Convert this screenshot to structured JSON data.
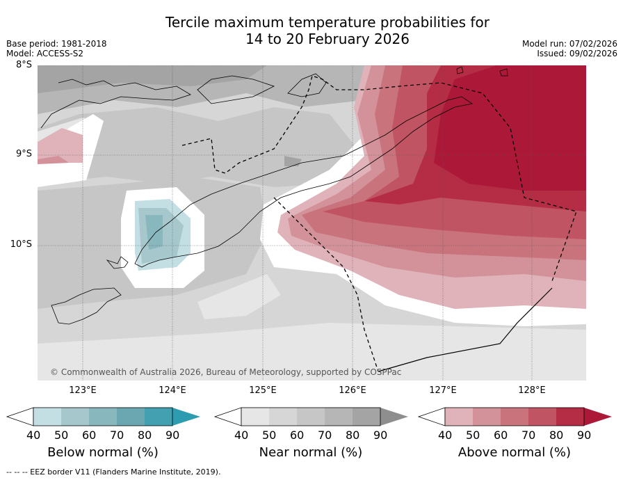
{
  "title_line1": "Tercile maximum temperature probabilities for",
  "title_line2": "14 to 20 February 2026",
  "base_period": "Base period: 1981-2018",
  "model": "Model: ACCESS-S2",
  "model_run": "Model run: 07/02/2026",
  "issued": "Issued: 09/02/2026",
  "lat_labels": [
    "8°S",
    "9°S",
    "10°S"
  ],
  "lon_labels": [
    "123°E",
    "124°E",
    "125°E",
    "126°E",
    "127°E",
    "128°E"
  ],
  "copyright": "© Commonwealth of Australia 2026, Bureau of Meteorology, supported by COSPPac",
  "colorbars": [
    {
      "label": "Below normal (%)",
      "ticks": [
        "40",
        "50",
        "60",
        "70",
        "80",
        "90"
      ],
      "colors": [
        "#c4dfe4",
        "#a6c8cd",
        "#88b7bd",
        "#6aa7b1",
        "#43a0b1",
        "#2d9bb0"
      ]
    },
    {
      "label": "Near normal (%)",
      "ticks": [
        "40",
        "50",
        "60",
        "70",
        "80",
        "90"
      ],
      "colors": [
        "#e6e6e6",
        "#d6d6d6",
        "#c6c6c6",
        "#b6b6b6",
        "#a4a4a4",
        "#8e8e8e"
      ]
    },
    {
      "label": "Above normal (%)",
      "ticks": [
        "40",
        "50",
        "60",
        "70",
        "80",
        "90"
      ],
      "colors": [
        "#dfb3b9",
        "#d3929a",
        "#c9737d",
        "#c15463",
        "#b52d45",
        "#ac1838"
      ]
    }
  ],
  "footer": "--  --  -- EEZ border V11 (Flanders Marine Institute, 2019)."
}
